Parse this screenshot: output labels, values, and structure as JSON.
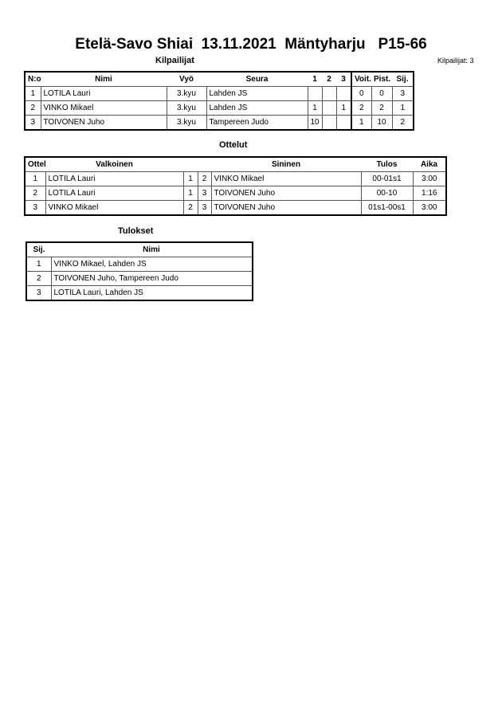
{
  "title": "Etelä-Savo Shiai  13.11.2021  Mäntyharju   P15-66",
  "kilpailijat": {
    "heading": "Kilpailijat",
    "count_label": "Kilpailijat: 3",
    "headers": [
      "N:o",
      "Nimi",
      "Vyö",
      "Seura",
      "1",
      "2",
      "3",
      "Voit.",
      "Pist.",
      "Sij."
    ],
    "rows": [
      [
        "1",
        "LOTILA Lauri",
        "3.kyu",
        "Lahden JS",
        "",
        "",
        "",
        "0",
        "0",
        "3"
      ],
      [
        "2",
        "VINKO Mikael",
        "3.kyu",
        "Lahden JS",
        "1",
        "",
        "1",
        "2",
        "2",
        "1"
      ],
      [
        "3",
        "TOIVONEN Juho",
        "3.kyu",
        "Tampereen Judo",
        "10",
        "",
        "",
        "1",
        "10",
        "2"
      ]
    ]
  },
  "ottelut": {
    "heading": "Ottelut",
    "headers": [
      "Ottelu",
      "Valkoinen",
      "",
      "",
      "Sininen",
      "Tulos",
      "Aika"
    ],
    "rows": [
      [
        "1",
        "LOTILA Lauri",
        "1",
        "2",
        "VINKO Mikael",
        "00-01s1",
        "3:00"
      ],
      [
        "2",
        "LOTILA Lauri",
        "1",
        "3",
        "TOIVONEN Juho",
        "00-10",
        "1:16"
      ],
      [
        "3",
        "VINKO Mikael",
        "2",
        "3",
        "TOIVONEN Juho",
        "01s1-00s1",
        "3:00"
      ]
    ]
  },
  "tulokset": {
    "heading": "Tulokset",
    "headers": [
      "Sij.",
      "Nimi"
    ],
    "rows": [
      [
        "1",
        "VINKO Mikael, Lahden JS"
      ],
      [
        "2",
        "TOIVONEN Juho, Tampereen Judo"
      ],
      [
        "3",
        "LOTILA Lauri, Lahden JS"
      ]
    ]
  }
}
